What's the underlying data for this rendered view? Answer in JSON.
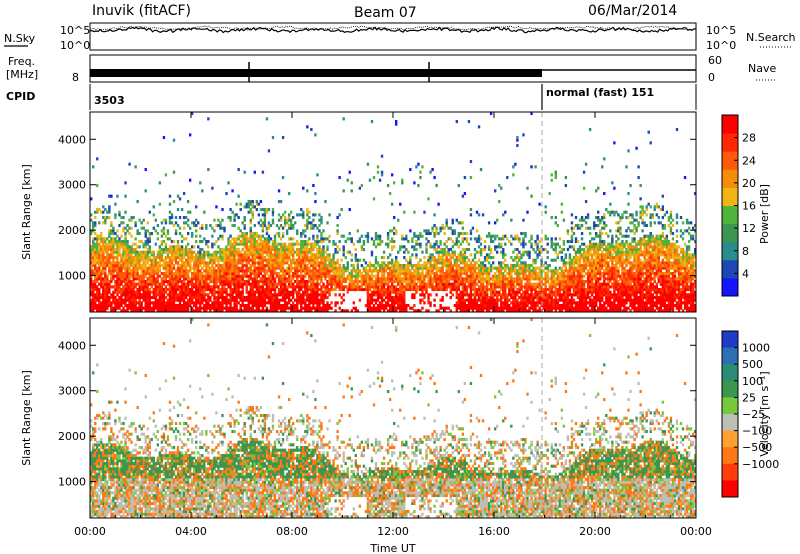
{
  "header": {
    "station": "Inuvik (fitACF)",
    "beam": "Beam 07",
    "date": "06/Mar/2014"
  },
  "strips": {
    "nsky_label": "N.Sky",
    "nsearch_label": "N.Search",
    "nsky_ticks": [
      "10^5",
      "10^0"
    ],
    "nsearch_ticks": [
      "10^5",
      "10^0"
    ],
    "freq_label_line1": "Freq.",
    "freq_label_line2": "[MHz]",
    "freq_tick_low": "8",
    "nave_label": "Nave",
    "nave_ticks": [
      "60",
      "0"
    ],
    "cpid_label": "CPID",
    "cpid_value": "3503",
    "mode_label": "normal (fast) 151"
  },
  "colors": {
    "power": [
      "#1414ff",
      "#1e46b4",
      "#288c8c",
      "#3c9650",
      "#50b43c",
      "#f0b414",
      "#f58c0a",
      "#ff5a0a",
      "#ff2800",
      "#ff0000"
    ],
    "velocity": [
      "#1e3cc8",
      "#2d6eb4",
      "#2d8c78",
      "#3c9650",
      "#78c83c",
      "#bebeb4",
      "#ffa030",
      "#ff7814",
      "#ff3c0a",
      "#ff0000"
    ],
    "mode_change_line": "#aaaaaa"
  },
  "chart_data": [
    {
      "type": "heatmap",
      "panel": "power",
      "ylabel": "Slant Range [km]",
      "yticks": [
        "1000",
        "2000",
        "3000",
        "4000"
      ],
      "ylim": [
        200,
        4600
      ],
      "xlim_hours": [
        0,
        24
      ],
      "colorbar_label": "Power [dB]",
      "colorbar_ticks": [
        "4",
        "8",
        "12",
        "16",
        "20",
        "24",
        "28"
      ],
      "colorbar_range": [
        0,
        32
      ]
    },
    {
      "type": "heatmap",
      "panel": "velocity",
      "ylabel": "Slant Range [km]",
      "yticks": [
        "1000",
        "2000",
        "3000",
        "4000"
      ],
      "ylim": [
        200,
        4600
      ],
      "xlim_hours": [
        0,
        24
      ],
      "colorbar_label": "Velocity [m s⁻¹]",
      "colorbar_ticks": [
        "1000",
        "500",
        "100",
        "25",
        "−25",
        "−100",
        "−500",
        "−1000"
      ]
    }
  ],
  "time_axis": {
    "ticks": [
      "00:00",
      "04:00",
      "08:00",
      "12:00",
      "16:00",
      "20:00",
      "00:00"
    ],
    "label": "Time UT"
  }
}
